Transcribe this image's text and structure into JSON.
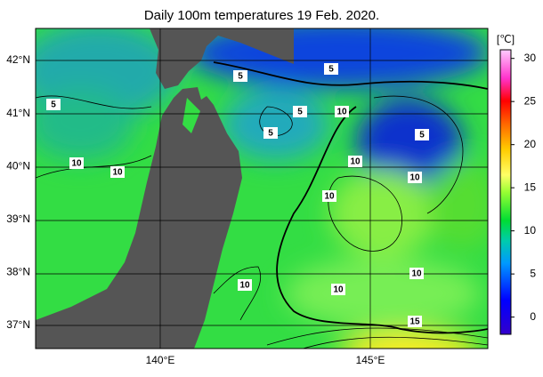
{
  "map": {
    "title": "Daily 100m temperatures 19 Feb. 2020.",
    "lat_labels": [
      "42°N",
      "41°N",
      "40°N",
      "39°N",
      "38°N",
      "37°N"
    ],
    "lon_labels": [
      "140°E",
      "145°E"
    ],
    "contour_labels": [
      5,
      5,
      5,
      5,
      10,
      5,
      10,
      10,
      10,
      5,
      10,
      10,
      10,
      10,
      10,
      15
    ],
    "colorbar": {
      "unit": "[℃]",
      "range": [
        -2,
        31
      ],
      "ticks": [
        0,
        5,
        10,
        15,
        20,
        25,
        30
      ]
    }
  }
}
